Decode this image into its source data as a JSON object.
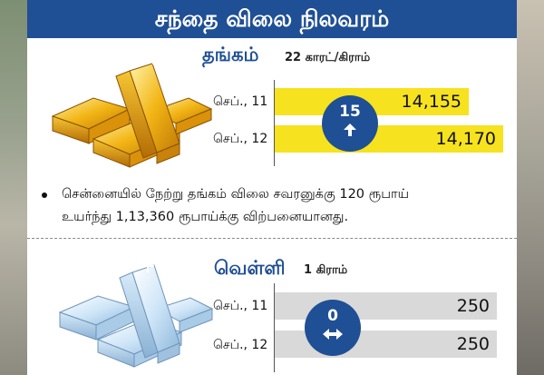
{
  "header": {
    "title": "சந்தை விலை நிலவரம்"
  },
  "gold": {
    "title": "தங்கம்",
    "unit": "22 காரட்/கிராம்",
    "rows": [
      {
        "date": "செப்., 11",
        "price": "14,155"
      },
      {
        "date": "செப்., 12",
        "price": "14,170"
      }
    ],
    "change": "15",
    "change_icon": "arrow-up-icon",
    "bar_color": "#f6e21f"
  },
  "note": {
    "line1": "சென்னையில் நேற்று தங்கம் விலை சவரனுக்கு 120 ரூபாய்",
    "line2": "உயர்ந்து 1,13,360 ரூபாய்க்கு விற்பனையானது."
  },
  "silver": {
    "title": "வெள்ளி",
    "unit": "1 கிராம்",
    "rows": [
      {
        "date": "செப்., 11",
        "price": "250"
      },
      {
        "date": "செப்., 12",
        "price": "250"
      }
    ],
    "change": "0",
    "change_icon": "left-right-arrow-icon",
    "bar_color": "#d9d9d9"
  },
  "colors": {
    "accent": "#1f4f95",
    "gold_bar": "#f6e21f",
    "silver_bar": "#d9d9d9"
  }
}
